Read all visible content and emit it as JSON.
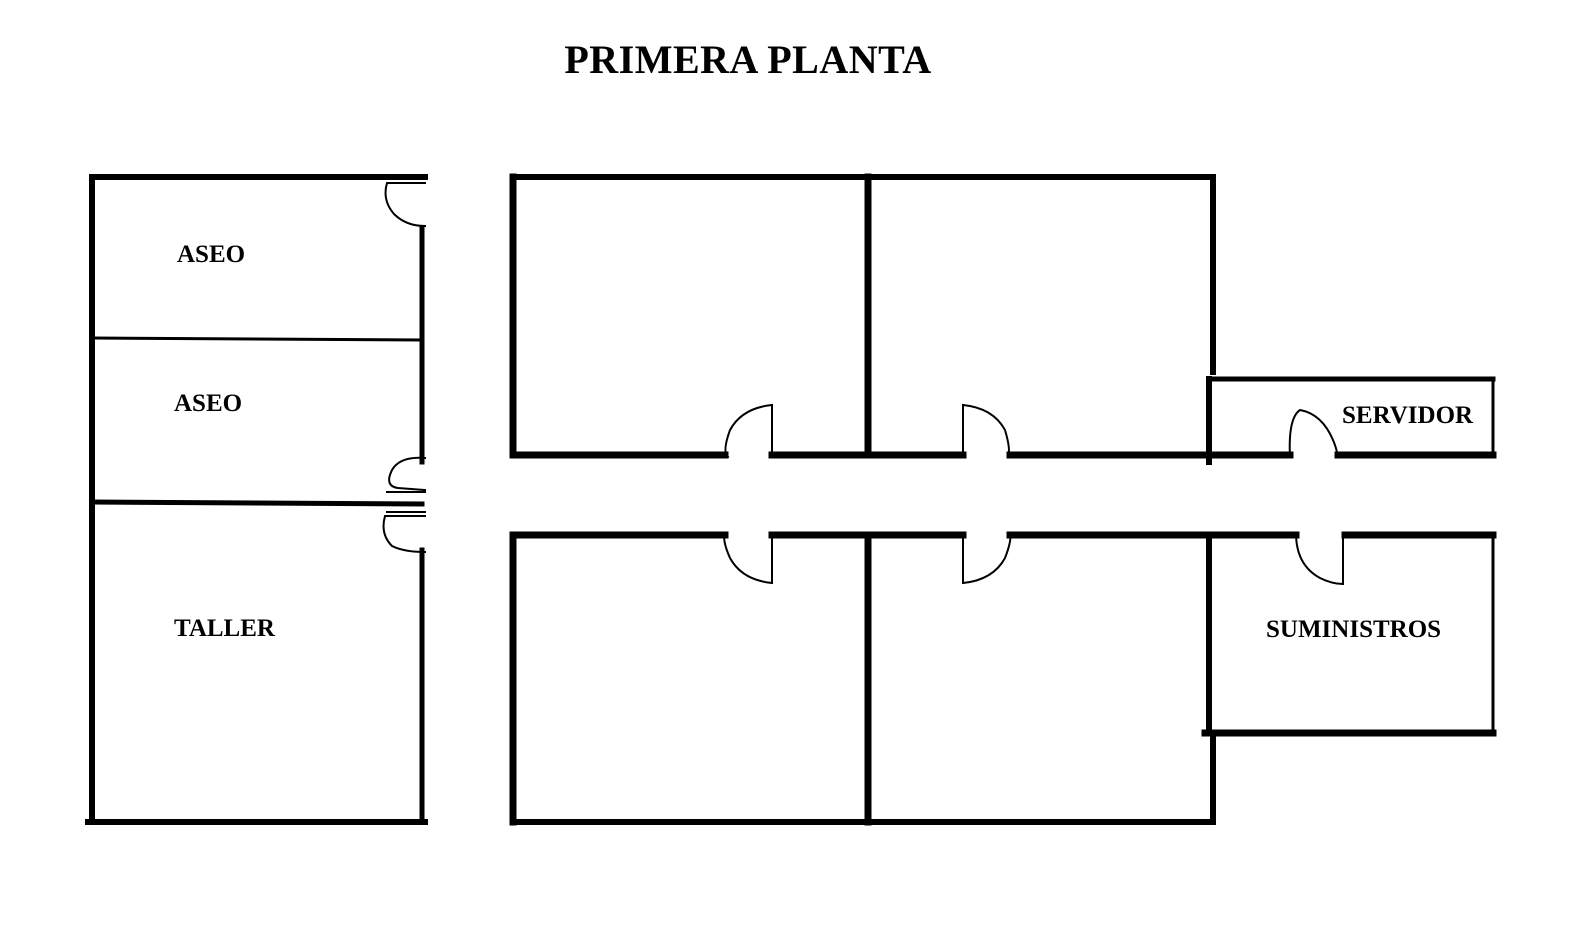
{
  "title": "PRIMERA PLANTA",
  "rooms": {
    "aseo_1": "ASEO",
    "aseo_2": "ASEO",
    "taller": "TALLER",
    "servidor": "SERVIDOR",
    "suministros": "SUMINISTROS"
  },
  "colors": {
    "wall": "#000000",
    "background": "#ffffff",
    "text": "#000000"
  }
}
